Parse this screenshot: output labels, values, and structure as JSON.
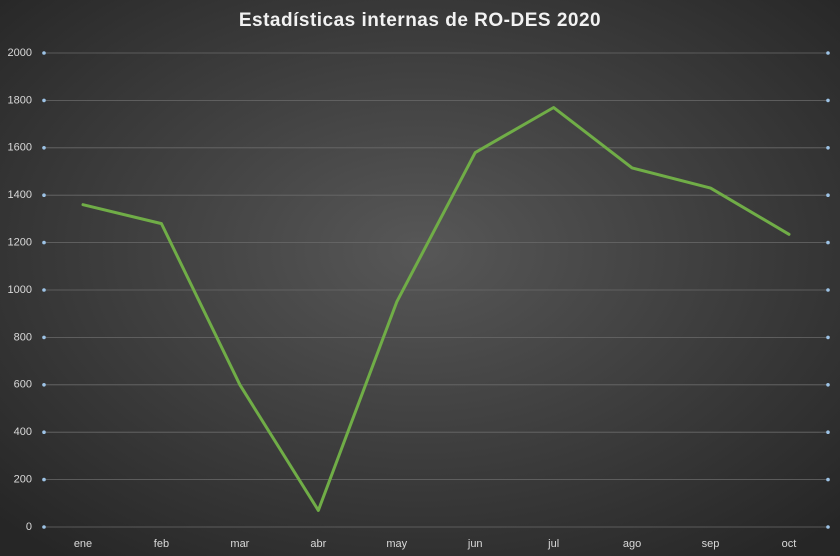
{
  "chart_data": {
    "type": "line",
    "title": "Estadísticas internas de RO-DES 2020",
    "categories": [
      "ene",
      "feb",
      "mar",
      "abr",
      "may",
      "jun",
      "jul",
      "ago",
      "sep",
      "oct"
    ],
    "values": [
      1360,
      1280,
      600,
      70,
      950,
      1580,
      1770,
      1515,
      1430,
      1235
    ],
    "color": "#70ad47",
    "ylim": [
      0,
      2000
    ],
    "yticks": [
      0,
      200,
      400,
      600,
      800,
      1000,
      1200,
      1400,
      1600,
      1800,
      2000
    ],
    "grid": true
  }
}
